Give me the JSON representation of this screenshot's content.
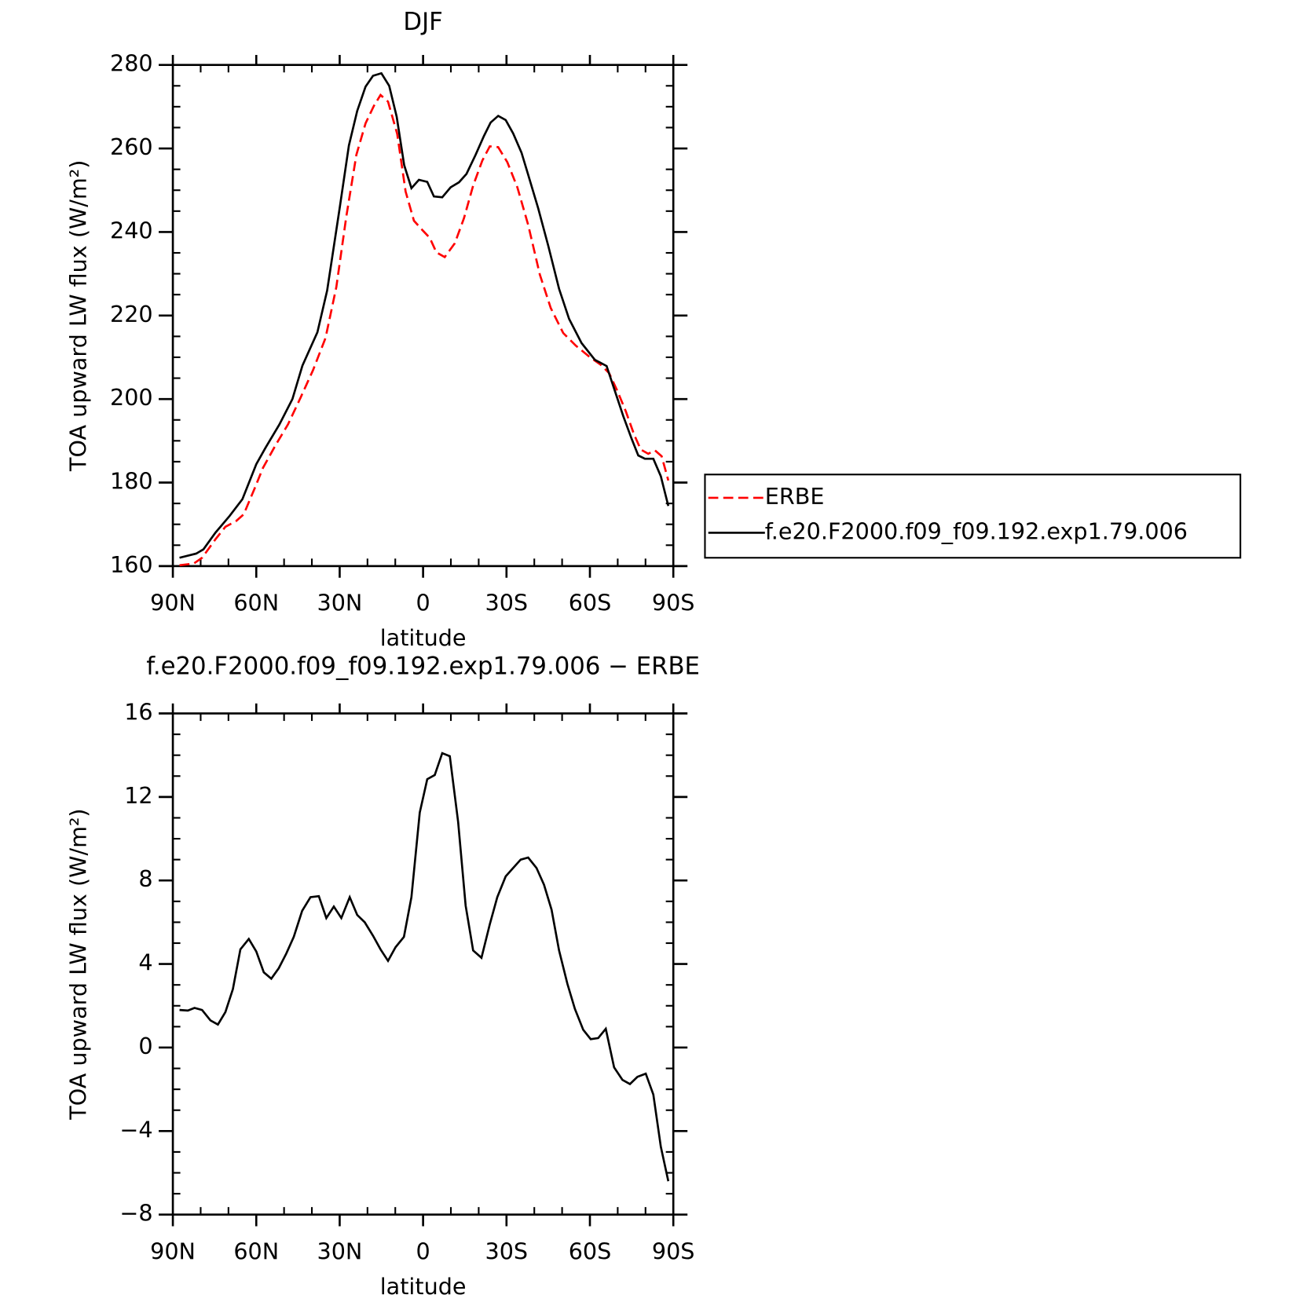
{
  "chart_data": [
    {
      "type": "line",
      "title": "DJF",
      "xlabel": "latitude",
      "ylabel": "TOA upward LW flux (W/m²)",
      "xlim": [
        90,
        -90
      ],
      "ylim": [
        160,
        280
      ],
      "xticks": [
        {
          "value": 90,
          "label": "90N"
        },
        {
          "value": 60,
          "label": "60N"
        },
        {
          "value": 30,
          "label": "30N"
        },
        0,
        {
          "value": -30,
          "label": "30S"
        },
        {
          "value": -60,
          "label": "60S"
        },
        {
          "value": -90,
          "label": "90S"
        }
      ],
      "yticks": [
        160,
        180,
        200,
        220,
        240,
        260,
        280
      ],
      "legend": "right",
      "series": [
        {
          "name": "ERBE",
          "color": "#ff0000",
          "dashed": true,
          "x": [
            87.6,
            82.5,
            79.5,
            74.7,
            71.1,
            67.2,
            64.5,
            60.6,
            57.6,
            53.1,
            48.6,
            44.1,
            39.6,
            35.1,
            31.2,
            27.6,
            24,
            20.7,
            17.7,
            15.3,
            12.6,
            9.3,
            6.3,
            3.3,
            0.3,
            -2.4,
            -4.8,
            -7.8,
            -11.4,
            -14.7,
            -18,
            -21.3,
            -24,
            -27,
            -30.3,
            -33.9,
            -37.8,
            -42,
            -45.9,
            -50.4,
            -54.9,
            -59.7,
            -63.9,
            -66.9,
            -69.9,
            -72.9,
            -75.9,
            -78.3,
            -81,
            -83.4,
            -85.8,
            -88.2
          ],
          "values": [
            160.2,
            160.6,
            162,
            166.4,
            169.4,
            170.8,
            172.4,
            178.6,
            183.5,
            188.9,
            193.9,
            200.3,
            206.9,
            214.6,
            226.8,
            243.7,
            258.5,
            266,
            270.2,
            272.8,
            271.2,
            263.5,
            249.7,
            242.7,
            240.5,
            238.6,
            235.1,
            234,
            237.3,
            243.3,
            251.1,
            257.1,
            260.5,
            260.3,
            256.7,
            250.7,
            241.7,
            229.8,
            221.8,
            215.8,
            212.8,
            210.2,
            208.2,
            206.2,
            201.9,
            197.1,
            191.5,
            187.9,
            186.9,
            187.7,
            186.3,
            180.5
          ]
        },
        {
          "name": "f.e20.F2000.f09_f09.192.exp1.79.006",
          "color": "#000000",
          "dashed": false,
          "x": [
            87.6,
            81.6,
            79,
            74.7,
            69.6,
            65,
            60,
            56.7,
            51.7,
            47,
            43.4,
            38,
            34.5,
            30,
            26.7,
            23.7,
            20.7,
            18,
            15,
            12.2,
            9.5,
            6.8,
            4.2,
            1.5,
            -1.5,
            -3.9,
            -6.9,
            -9.9,
            -12.9,
            -15.6,
            -18.9,
            -21.9,
            -24.3,
            -27,
            -29.7,
            -32.4,
            -35.4,
            -37.8,
            -41.4,
            -45,
            -48.9,
            -52.5,
            -57,
            -61.8,
            -66,
            -69,
            -72,
            -75,
            -77.4,
            -79.8,
            -82.8,
            -85.5,
            -88.2
          ],
          "values": [
            162,
            163,
            164,
            168,
            172,
            176,
            184.4,
            188.3,
            193.9,
            200,
            208,
            216,
            226,
            245.7,
            260.7,
            269,
            274.8,
            277.4,
            278,
            275,
            267.6,
            256,
            250.5,
            252.5,
            252,
            248.5,
            248.3,
            250.7,
            251.9,
            253.9,
            258.5,
            263,
            266.2,
            267.8,
            266.8,
            263.6,
            259,
            253.7,
            245.7,
            236.7,
            226.4,
            219.2,
            213.4,
            209.4,
            207.9,
            201.9,
            195.9,
            190.5,
            186.5,
            185.7,
            185.7,
            181.5,
            174.4
          ]
        }
      ]
    },
    {
      "type": "line",
      "title": "f.e20.F2000.f09_f09.192.exp1.79.006 − ERBE",
      "xlabel": "latitude",
      "ylabel": "TOA upward LW flux (W/m²)",
      "xlim": [
        90,
        -90
      ],
      "ylim": [
        -8,
        16
      ],
      "xticks": [
        {
          "value": 90,
          "label": "90N"
        },
        {
          "value": 60,
          "label": "60N"
        },
        {
          "value": 30,
          "label": "30N"
        },
        0,
        {
          "value": -30,
          "label": "30S"
        },
        {
          "value": -60,
          "label": "60S"
        },
        {
          "value": -90,
          "label": "90S"
        }
      ],
      "yticks": [
        {
          "value": -8,
          "label": "−8"
        },
        {
          "value": -4,
          "label": "−4"
        },
        0,
        4,
        8,
        12,
        16
      ],
      "series": [
        {
          "color": "#000000",
          "dashed": false,
          "x": [
            87.6,
            84.6,
            82.2,
            79.5,
            76.5,
            73.8,
            71.1,
            68.4,
            65.7,
            62.7,
            60,
            57.3,
            54.6,
            51.9,
            49.2,
            46.5,
            43.5,
            40.5,
            37.5,
            34.8,
            32.1,
            29.4,
            26.4,
            23.7,
            21,
            18,
            15.3,
            12.6,
            9.9,
            6.9,
            4.2,
            1.2,
            -1.5,
            -4.2,
            -6.9,
            -9.6,
            -12.6,
            -15.3,
            -18,
            -21,
            -24,
            -26.7,
            -29.7,
            -32.4,
            -35.1,
            -37.8,
            -40.8,
            -43.5,
            -46.2,
            -48.9,
            -51.9,
            -54.6,
            -57.6,
            -60.3,
            -63,
            -65.7,
            -68.7,
            -71.7,
            -74.4,
            -77.1,
            -80.1,
            -82.8,
            -85.5,
            -88.2
          ],
          "values": [
            1.8,
            1.77,
            1.9,
            1.8,
            1.3,
            1.1,
            1.7,
            2.8,
            4.7,
            5.2,
            4.6,
            3.6,
            3.3,
            3.8,
            4.5,
            5.3,
            6.55,
            7.2,
            7.25,
            6.2,
            6.75,
            6.2,
            7.2,
            6.35,
            6,
            5.35,
            4.7,
            4.15,
            4.8,
            5.3,
            7.2,
            11.25,
            12.85,
            13.05,
            14.1,
            13.95,
            10.8,
            6.8,
            4.65,
            4.3,
            5.9,
            7.2,
            8.2,
            8.6,
            9,
            9.1,
            8.6,
            7.8,
            6.6,
            4.65,
            3.05,
            1.85,
            0.85,
            0.4,
            0.45,
            0.9,
            -0.95,
            -1.55,
            -1.75,
            -1.4,
            -1.25,
            -2.25,
            -4.75,
            -6.4
          ]
        }
      ]
    }
  ]
}
